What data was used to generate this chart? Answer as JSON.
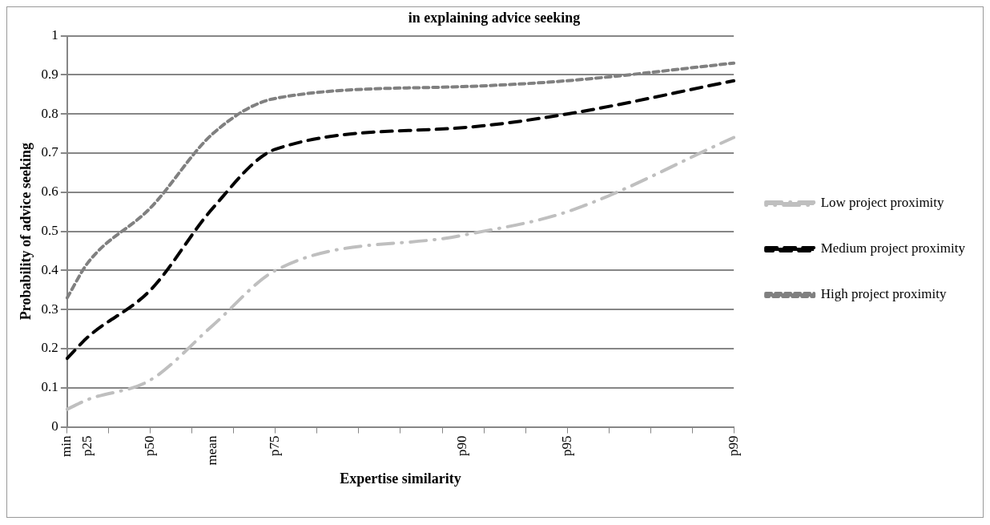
{
  "chart_data": {
    "type": "line",
    "title": "in explaining advice seeking",
    "xlabel": "Expertise similarity",
    "ylabel": "Probability of advice seeking",
    "categories": [
      "min",
      "p25",
      null,
      null,
      "p50",
      null,
      null,
      "mean",
      null,
      null,
      "p75",
      null,
      null,
      null,
      null,
      null,
      null,
      null,
      null,
      "p90",
      null,
      null,
      null,
      null,
      "p95",
      null,
      null,
      null,
      null,
      null,
      null,
      null,
      "p99"
    ],
    "ylim": [
      0,
      1
    ],
    "yticks": [
      0,
      0.1,
      0.2,
      0.3,
      0.4,
      0.5,
      0.6,
      0.7,
      0.8,
      0.9,
      1
    ],
    "grid": "y",
    "legend": "right",
    "marker": "none",
    "series": [
      {
        "name": "Low project proximity",
        "color": "#bfbfbf",
        "line_style": "dashdot",
        "values": [
          0.045,
          0.07,
          null,
          null,
          0.12,
          null,
          null,
          0.26,
          null,
          null,
          0.4,
          null,
          null,
          null,
          null,
          null,
          null,
          null,
          null,
          0.49,
          null,
          null,
          null,
          null,
          0.55,
          null,
          null,
          null,
          null,
          null,
          null,
          null,
          0.74
        ]
      },
      {
        "name": "Medium project proximity",
        "color": "#000000",
        "line_style": "dashed",
        "values": [
          0.175,
          0.23,
          null,
          null,
          0.35,
          null,
          null,
          0.56,
          null,
          null,
          0.71,
          null,
          null,
          null,
          null,
          null,
          null,
          null,
          null,
          0.765,
          null,
          null,
          null,
          null,
          0.8,
          null,
          null,
          null,
          null,
          null,
          null,
          null,
          0.885
        ]
      },
      {
        "name": "High project proximity",
        "color": "#808080",
        "line_style": "dotted",
        "values": [
          0.33,
          0.42,
          null,
          null,
          0.56,
          null,
          null,
          0.75,
          null,
          null,
          0.84,
          null,
          null,
          null,
          null,
          null,
          null,
          null,
          null,
          0.87,
          null,
          null,
          null,
          null,
          0.885,
          null,
          null,
          null,
          null,
          null,
          null,
          null,
          0.93
        ]
      }
    ]
  }
}
